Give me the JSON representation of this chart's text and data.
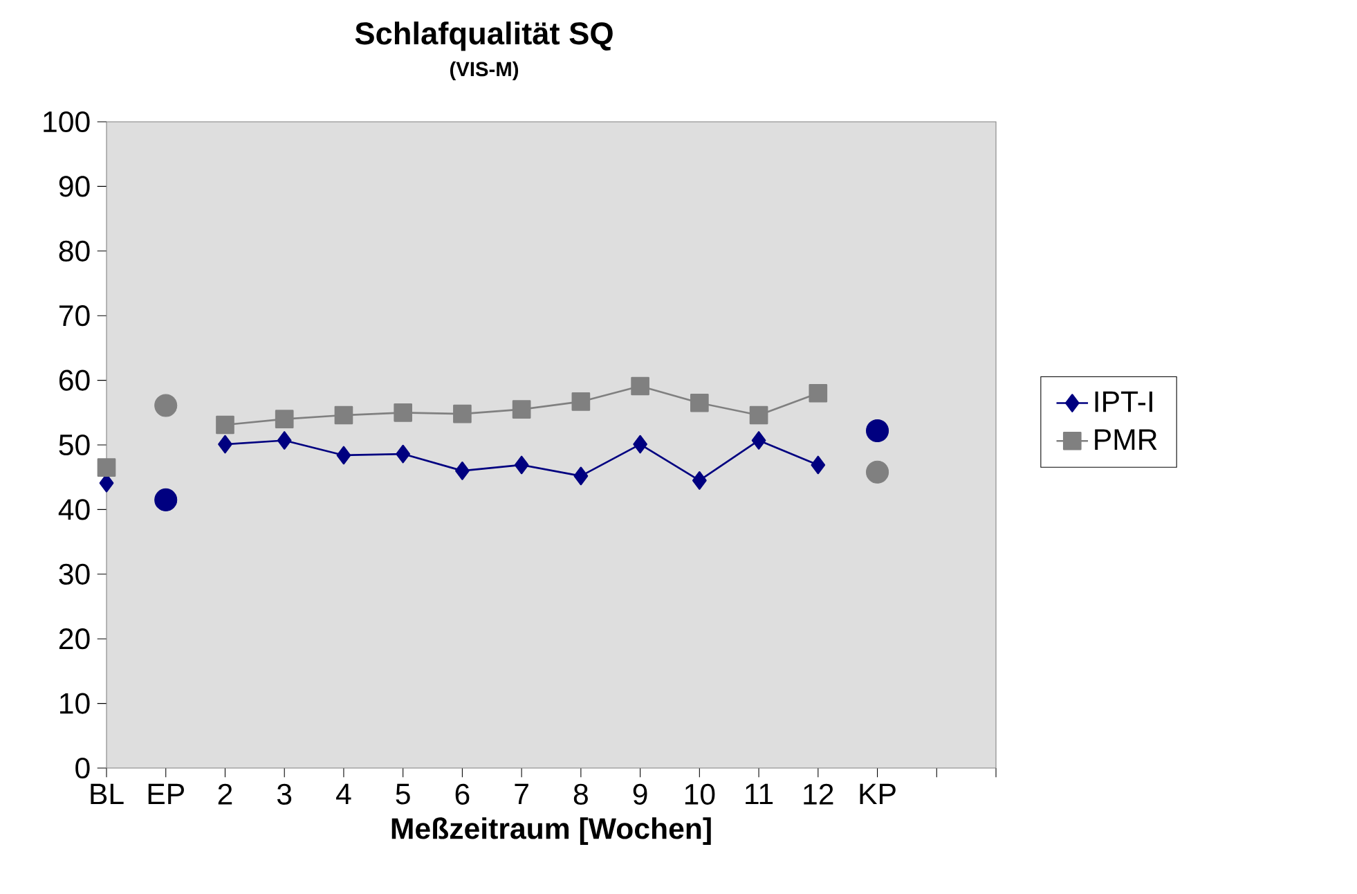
{
  "chart_data": {
    "type": "line",
    "title": "Schlafqualität SQ",
    "subtitle": "(VIS-M)",
    "xlabel": "Meßzeitraum [Wochen]",
    "categories": [
      "BL",
      "EP",
      "2",
      "3",
      "4",
      "5",
      "6",
      "7",
      "8",
      "9",
      "10",
      "11",
      "12",
      "KP",
      null,
      null
    ],
    "ylim": [
      0,
      100
    ],
    "yticks": [
      0,
      10,
      20,
      30,
      40,
      50,
      60,
      70,
      80,
      90,
      100
    ],
    "grid": false,
    "legend": "right",
    "line_style": "solid",
    "series": [
      {
        "name": "IPT-I",
        "color": "#000080",
        "marker": "diamond",
        "values": [
          44.1,
          null,
          50.1,
          50.7,
          48.4,
          48.6,
          46,
          46.9,
          45.2,
          50.1,
          44.5,
          50.7,
          46.9,
          null,
          null,
          null
        ]
      },
      {
        "name": "PMR",
        "color": "#808080",
        "marker": "square",
        "values": [
          46.5,
          null,
          53.1,
          54,
          54.6,
          55,
          54.8,
          55.5,
          56.7,
          59.1,
          56.5,
          54.6,
          58,
          null,
          null,
          null
        ]
      },
      {
        "type": "scatter",
        "color": "#000080",
        "marker": "circle",
        "values": [
          null,
          41.5,
          null,
          null,
          null,
          null,
          null,
          null,
          null,
          null,
          null,
          null,
          null,
          52.2,
          null,
          null
        ]
      },
      {
        "type": "scatter",
        "color": "#808080",
        "marker": "circle",
        "values": [
          null,
          56.1,
          null,
          null,
          null,
          null,
          null,
          null,
          null,
          null,
          null,
          null,
          null,
          45.8,
          null,
          null
        ]
      }
    ]
  }
}
